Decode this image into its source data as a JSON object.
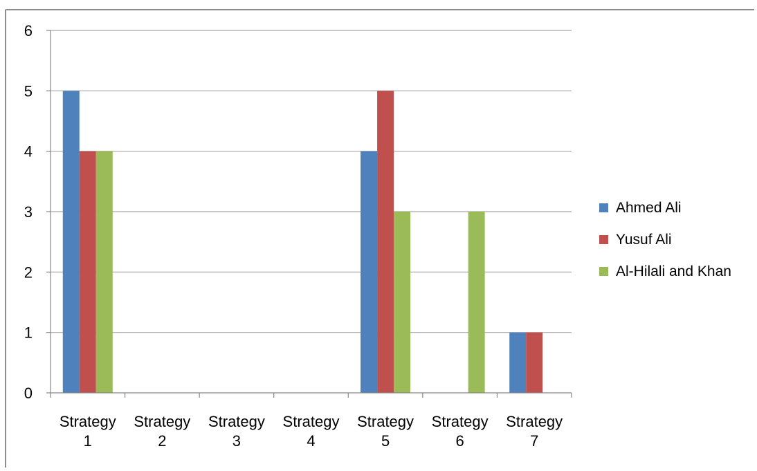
{
  "chart_data": {
    "type": "bar",
    "categories": [
      [
        "Strategy",
        "1"
      ],
      [
        "Strategy",
        "2"
      ],
      [
        "Strategy",
        "3"
      ],
      [
        "Strategy",
        "4"
      ],
      [
        "Strategy",
        "5"
      ],
      [
        "Strategy",
        "6"
      ],
      [
        "Strategy",
        "7"
      ]
    ],
    "series": [
      {
        "name": "Ahmed Ali",
        "color": "#4F81BD",
        "values": [
          5,
          0,
          0,
          0,
          4,
          0,
          1
        ]
      },
      {
        "name": "Yusuf Ali",
        "color": "#C0504D",
        "values": [
          4,
          0,
          0,
          0,
          5,
          0,
          1
        ]
      },
      {
        "name": "Al-Hilali and Khan",
        "color": "#9BBB59",
        "values": [
          4,
          0,
          0,
          0,
          3,
          3,
          0
        ]
      }
    ],
    "title": "",
    "xlabel": "",
    "ylabel": "",
    "ylim": [
      0,
      6
    ],
    "yticks": [
      "0",
      "1",
      "2",
      "3",
      "4",
      "5",
      "6"
    ],
    "grid": true,
    "legend_position": "right",
    "gridline_color": "#A6A6A6",
    "axis_color": "#868686"
  }
}
